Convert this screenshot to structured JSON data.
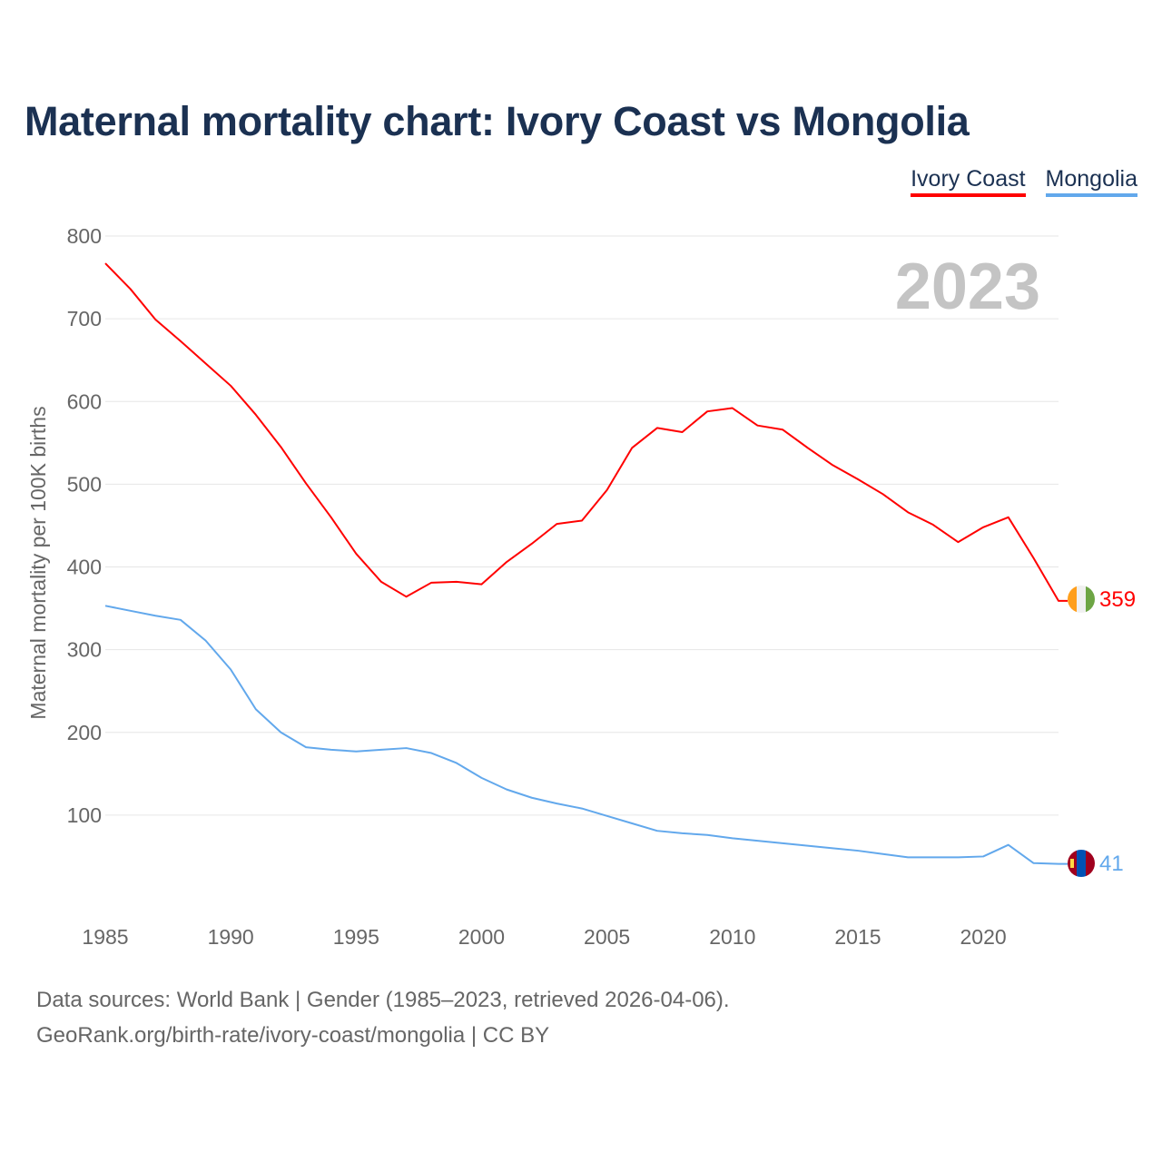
{
  "title": "Maternal mortality chart: Ivory Coast vs Mongolia",
  "year_watermark": "2023",
  "footer": {
    "line1": "Data sources: World Bank | Gender (1985–2023, retrieved 2026-04-06).",
    "line2": "GeoRank.org/birth-rate/ivory-coast/mongolia | CC BY"
  },
  "chart_data": {
    "type": "line",
    "title": "Maternal mortality chart: Ivory Coast vs Mongolia",
    "xlabel": "",
    "ylabel": "Maternal mortality per 100K births",
    "xlim": [
      1985,
      2023
    ],
    "ylim": [
      0,
      800
    ],
    "x_ticks": [
      1985,
      1990,
      1995,
      2000,
      2005,
      2010,
      2015,
      2020
    ],
    "y_ticks": [
      100,
      200,
      300,
      400,
      500,
      600,
      700,
      800
    ],
    "grid": true,
    "legend_placement": "top-right",
    "x": [
      1985,
      1986,
      1987,
      1988,
      1989,
      1990,
      1991,
      1992,
      1993,
      1994,
      1995,
      1996,
      1997,
      1998,
      1999,
      2000,
      2001,
      2002,
      2003,
      2004,
      2005,
      2006,
      2007,
      2008,
      2009,
      2010,
      2011,
      2012,
      2013,
      2014,
      2015,
      2016,
      2017,
      2018,
      2019,
      2020,
      2021,
      2022,
      2023
    ],
    "series": [
      {
        "name": "Ivory Coast",
        "color": "#ff0000",
        "end_label": "359",
        "values": [
          767,
          736,
          699,
          673,
          646,
          619,
          584,
          545,
          501,
          460,
          416,
          382,
          364,
          381,
          382,
          379,
          406,
          428,
          452,
          456,
          493,
          544,
          568,
          563,
          588,
          592,
          571,
          566,
          544,
          523,
          506,
          488,
          466,
          451,
          430,
          448,
          460,
          411,
          359
        ]
      },
      {
        "name": "Mongolia",
        "color": "#62a8ec",
        "end_label": "41",
        "values": [
          353,
          347,
          341,
          336,
          311,
          276,
          228,
          200,
          182,
          179,
          177,
          179,
          181,
          175,
          163,
          145,
          131,
          121,
          114,
          108,
          99,
          90,
          81,
          78,
          76,
          72,
          69,
          66,
          63,
          60,
          57,
          53,
          49,
          49,
          49,
          50,
          64,
          42,
          41
        ]
      }
    ]
  }
}
